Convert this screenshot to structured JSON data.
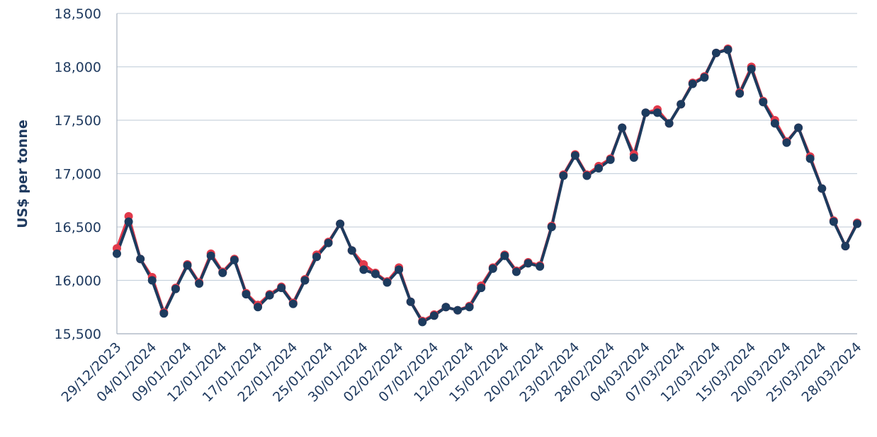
{
  "chart_data": {
    "type": "line",
    "title": "",
    "xlabel": "",
    "ylabel": "US$ per tonne",
    "ylim": [
      15500,
      18500
    ],
    "yticks": [
      15500,
      16000,
      16500,
      17000,
      17500,
      18000,
      18500
    ],
    "ytick_labels": [
      "15,500",
      "16,000",
      "16,500",
      "17,000",
      "17,500",
      "18,000",
      "18,500"
    ],
    "grid": "horizontal",
    "legend": "none",
    "xtick_labels": [
      "29/12/2023",
      "04/01/2024",
      "09/01/2024",
      "12/01/2024",
      "17/01/2024",
      "22/01/2024",
      "25/01/2024",
      "30/01/2024",
      "02/02/2024",
      "07/02/2024",
      "12/02/2024",
      "15/02/2024",
      "20/02/2024",
      "23/02/2024",
      "28/02/2024",
      "04/03/2024",
      "07/03/2024",
      "12/03/2024",
      "15/03/2024",
      "20/03/2024",
      "25/03/2024",
      "28/03/2024"
    ],
    "series": [
      {
        "color": "#e23a4b",
        "values": [
          16300,
          16600,
          16200,
          16030,
          15700,
          15930,
          16150,
          15980,
          16250,
          16080,
          16200,
          15880,
          15770,
          15870,
          15940,
          15790,
          16010,
          16240,
          16360,
          16530,
          16280,
          16150,
          16070,
          15990,
          16120,
          15800,
          15620,
          15680,
          15750,
          15720,
          15760,
          15950,
          16120,
          16240,
          16090,
          16170,
          16140,
          16510,
          16990,
          17180,
          16990,
          17070,
          17140,
          17430,
          17180,
          17570,
          17600,
          17470,
          17650,
          17850,
          17910,
          18130,
          18170,
          17760,
          18000,
          17680,
          17500,
          17300,
          17430,
          17160,
          16860,
          16560,
          16320,
          16540
        ]
      },
      {
        "color": "#1d3b5e",
        "values": [
          16250,
          16550,
          16200,
          16000,
          15690,
          15920,
          16140,
          15970,
          16230,
          16070,
          16190,
          15870,
          15750,
          15860,
          15930,
          15780,
          16000,
          16220,
          16350,
          16530,
          16280,
          16100,
          16060,
          15980,
          16100,
          15800,
          15610,
          15670,
          15750,
          15720,
          15750,
          15930,
          16110,
          16230,
          16080,
          16160,
          16130,
          16500,
          16980,
          17170,
          16980,
          17050,
          17130,
          17430,
          17150,
          17570,
          17570,
          17470,
          17650,
          17840,
          17900,
          18130,
          18160,
          17750,
          17980,
          17670,
          17470,
          17290,
          17430,
          17140,
          16860,
          16550,
          16320,
          16530
        ]
      }
    ]
  }
}
